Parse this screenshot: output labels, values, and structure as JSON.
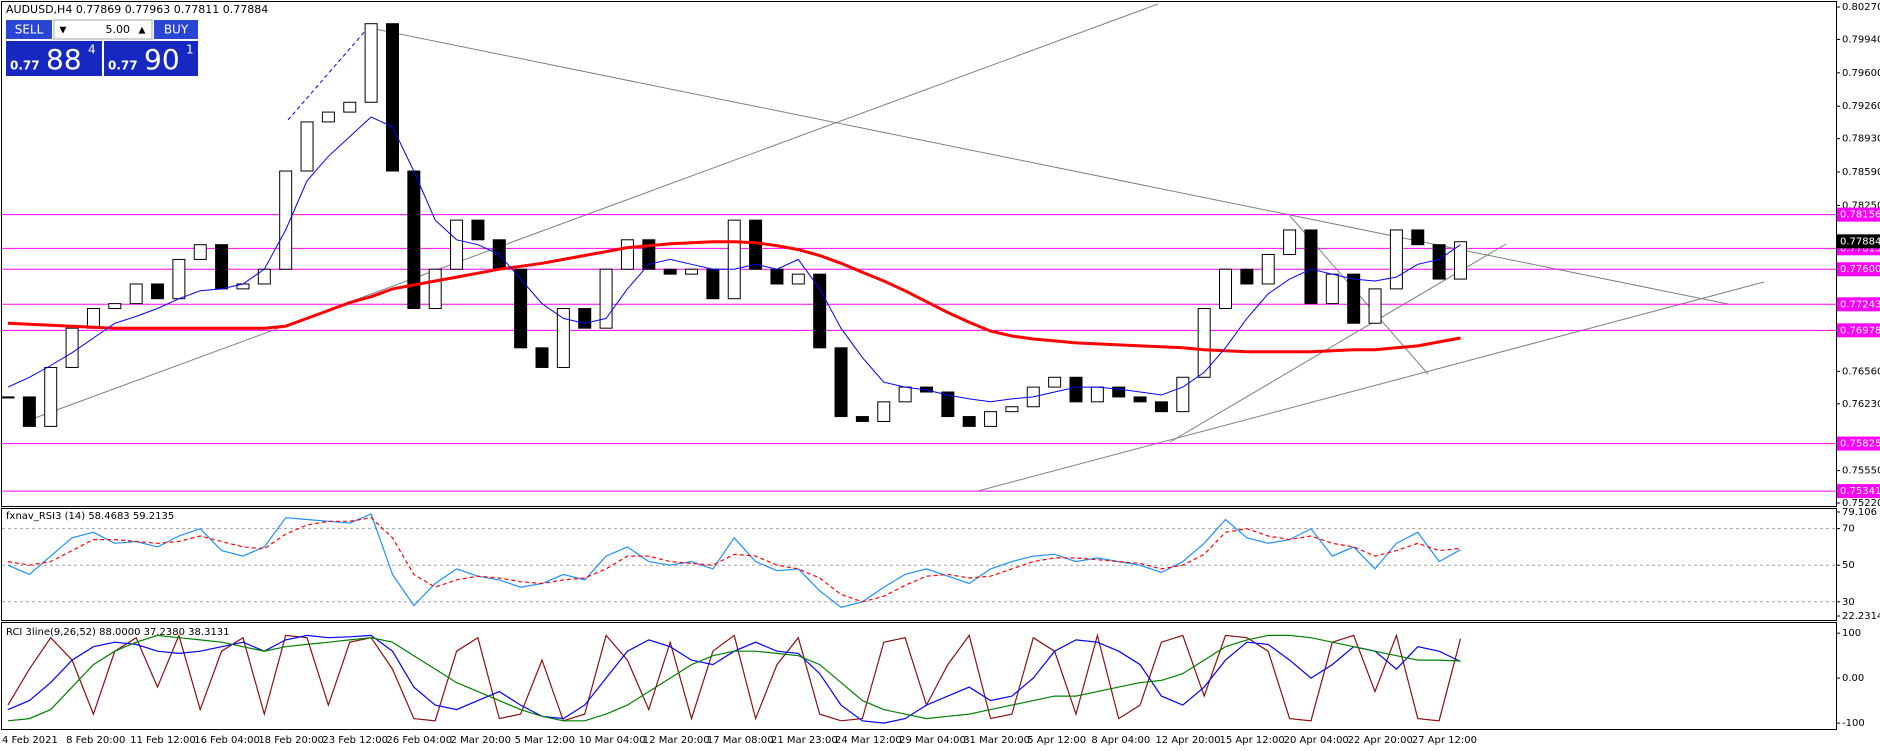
{
  "header": {
    "title": "AUDUSD,H4  0.77869 0.77963 0.77811 0.77884"
  },
  "trade_panel": {
    "sell": "SELL",
    "lots": "5.00",
    "buy": "BUY",
    "sell_prefix": "0.77",
    "sell_big": "88",
    "sell_sup": "4",
    "buy_prefix": "0.77",
    "buy_big": "90",
    "buy_sup": "1"
  },
  "chart_data": [
    {
      "type": "candlestick",
      "categories": [
        "4 Feb 2021",
        null,
        null,
        "8 Feb 20:00",
        null,
        null,
        "11 Feb 12:00",
        null,
        null,
        "16 Feb 04:00",
        null,
        null,
        "18 Feb 20:00",
        null,
        null,
        "23 Feb 12:00",
        null,
        null,
        "26 Feb 04:00",
        null,
        null,
        "2 Mar 20:00",
        null,
        null,
        "5 Mar 12:00",
        null,
        null,
        "10 Mar 04:00",
        null,
        null,
        "12 Mar 20:00",
        null,
        null,
        "17 Mar 08:00",
        null,
        null,
        "21 Mar 23:00",
        null,
        null,
        "24 Mar 12:00",
        null,
        null,
        "29 Mar 04:00",
        null,
        null,
        "31 Mar 20:00",
        null,
        null,
        "5 Apr 12:00",
        null,
        null,
        "8 Apr 04:00",
        null,
        null,
        "12 Apr 20:00",
        null,
        null,
        "15 Apr 12:00",
        null,
        null,
        "20 Apr 04:00",
        null,
        null,
        "22 Apr 20:00",
        null,
        null,
        "27 Apr 12:00",
        null,
        null
      ],
      "values": [
        0.763,
        0.76,
        0.766,
        0.77,
        0.772,
        0.7725,
        0.7745,
        0.773,
        0.777,
        0.7785,
        0.774,
        0.7745,
        0.776,
        0.786,
        0.791,
        0.792,
        0.793,
        0.801,
        0.786,
        0.772,
        0.776,
        0.781,
        0.779,
        0.776,
        0.768,
        0.766,
        0.772,
        0.77,
        0.776,
        0.779,
        0.776,
        0.7755,
        0.776,
        0.773,
        0.781,
        0.776,
        0.7745,
        0.7755,
        0.768,
        0.761,
        0.7605,
        0.7625,
        0.764,
        0.7635,
        0.761,
        0.76,
        0.7615,
        0.762,
        0.764,
        0.765,
        0.7625,
        0.764,
        0.763,
        0.7625,
        0.7615,
        0.765,
        0.772,
        0.776,
        0.7745,
        0.7775,
        0.78,
        0.7725,
        0.7755,
        0.7705,
        0.774,
        0.78,
        0.7785,
        0.775,
        0.7788
      ],
      "series": [
        {
          "color": "#ff0000",
          "line_width": 3,
          "values": [
            0.7705,
            0.7704,
            0.7703,
            0.7702,
            0.7701,
            0.77,
            0.77,
            0.77,
            0.77,
            0.77,
            0.77,
            0.77,
            0.77,
            0.7702,
            0.771,
            0.7718,
            0.7726,
            0.7732,
            0.774,
            0.7744,
            0.7748,
            0.7752,
            0.7756,
            0.776,
            0.7763,
            0.7766,
            0.777,
            0.7774,
            0.7778,
            0.7782,
            0.7784,
            0.7786,
            0.7787,
            0.7788,
            0.7788,
            0.7787,
            0.7784,
            0.778,
            0.7774,
            0.7766,
            0.7757,
            0.7748,
            0.7738,
            0.7727,
            0.7716,
            0.7706,
            0.7697,
            0.7692,
            0.7689,
            0.7687,
            0.7685,
            0.7684,
            0.7683,
            0.7682,
            0.7681,
            0.768,
            0.7678,
            0.7677,
            0.7676,
            0.7676,
            0.7676,
            0.7676,
            0.7677,
            0.7678,
            0.7678,
            0.768,
            0.7682,
            0.7686,
            0.769
          ]
        },
        {
          "color": "#0000ff",
          "line_width": 1,
          "values": [
            0.764,
            0.765,
            0.7662,
            0.7675,
            0.769,
            0.7705,
            0.7712,
            0.772,
            0.773,
            0.7738,
            0.774,
            0.7745,
            0.776,
            0.78,
            0.785,
            0.7875,
            0.7895,
            0.7915,
            0.7905,
            0.786,
            0.781,
            0.779,
            0.7785,
            0.7775,
            0.775,
            0.7725,
            0.771,
            0.7705,
            0.771,
            0.774,
            0.7765,
            0.777,
            0.7765,
            0.776,
            0.776,
            0.7765,
            0.776,
            0.777,
            0.774,
            0.77,
            0.767,
            0.7645,
            0.764,
            0.7637,
            0.7632,
            0.7628,
            0.7625,
            0.7628,
            0.763,
            0.7635,
            0.764,
            0.764,
            0.7638,
            0.7635,
            0.7632,
            0.764,
            0.7655,
            0.768,
            0.771,
            0.7735,
            0.775,
            0.776,
            0.7755,
            0.775,
            0.7748,
            0.7752,
            0.7765,
            0.777,
            0.7785
          ]
        }
      ],
      "levels": {
        "color": "#ff00ff",
        "values": [
          0.78156,
          0.77813,
          {
            "value": 0.776,
            "label": "0.77600"
          },
          0.77243,
          0.76978,
          0.75825,
          0.75341
        ]
      },
      "last_price": 0.77884,
      "ylim": [
        0.7522,
        0.8027
      ],
      "yticks": [
        {
          "value": 0.8027,
          "label": "0.80270"
        },
        {
          "value": 0.7994,
          "label": "0.79940"
        },
        {
          "value": 0.796,
          "label": "0.79600"
        },
        {
          "value": 0.7926,
          "label": "0.79260"
        },
        {
          "value": 0.7893,
          "label": "0.78930"
        },
        {
          "value": 0.7859,
          "label": "0.78590"
        },
        {
          "value": 0.7825,
          "label": "0.78250"
        },
        {
          "value": 0.7656,
          "label": "0.76560"
        },
        {
          "value": 0.7623,
          "label": "0.76230"
        },
        {
          "value": 0.7555,
          "label": "0.75550"
        },
        {
          "value": 0.7522,
          "label": "0.75220"
        }
      ],
      "grid": false
    },
    {
      "type": "line",
      "title": "fxnav_RSI3 (14) 58.4683 59.2135",
      "series": [
        {
          "color": "#1e90ff",
          "dash": false,
          "values": [
            50,
            45,
            55,
            65,
            68,
            62,
            63,
            60,
            66,
            70,
            58,
            55,
            60,
            76,
            75,
            74,
            73,
            78,
            45,
            28,
            40,
            48,
            44,
            42,
            38,
            40,
            45,
            42,
            55,
            60,
            52,
            50,
            52,
            48,
            65,
            52,
            47,
            48,
            36,
            27,
            30,
            38,
            45,
            48,
            44,
            40,
            48,
            52,
            55,
            56,
            52,
            54,
            52,
            50,
            46,
            52,
            62,
            75,
            65,
            62,
            64,
            70,
            55,
            60,
            48,
            62,
            68,
            52,
            58.5
          ]
        },
        {
          "color": "#ff0000",
          "dash": true,
          "values": [
            52,
            50,
            52,
            58,
            64,
            64,
            63,
            62,
            63,
            66,
            63,
            60,
            59,
            67,
            72,
            74,
            74,
            76,
            65,
            45,
            38,
            42,
            44,
            43,
            41,
            40,
            42,
            43,
            48,
            55,
            55,
            52,
            51,
            50,
            56,
            55,
            50,
            48,
            43,
            34,
            30,
            33,
            39,
            44,
            45,
            43,
            44,
            48,
            52,
            54,
            54,
            53,
            52,
            51,
            48,
            50,
            56,
            68,
            70,
            66,
            64,
            66,
            62,
            60,
            55,
            58,
            62,
            58,
            59.2
          ]
        }
      ],
      "ylim": [
        22.2314,
        79.106
      ],
      "yticks": [
        79.106,
        70,
        50,
        30,
        22.2314
      ],
      "grid": true
    },
    {
      "type": "line",
      "title": "RCI 3line(9,26,52) 88.0000 37.2380 38.3131",
      "series": [
        {
          "color": "#8b1010",
          "dash": false,
          "values": [
            -60,
            20,
            90,
            40,
            -80,
            60,
            90,
            -20,
            95,
            -70,
            60,
            90,
            -80,
            95,
            90,
            -60,
            80,
            90,
            20,
            -90,
            -95,
            60,
            90,
            -90,
            -80,
            40,
            -95,
            -80,
            95,
            40,
            -70,
            80,
            -90,
            60,
            95,
            -90,
            30,
            90,
            -80,
            -95,
            -90,
            80,
            90,
            -60,
            30,
            95,
            -90,
            -80,
            90,
            60,
            -80,
            95,
            -90,
            -60,
            80,
            95,
            -40,
            95,
            90,
            60,
            -90,
            -95,
            80,
            95,
            -30,
            95,
            -90,
            -95,
            88
          ]
        },
        {
          "color": "#0000ff",
          "dash": false,
          "values": [
            -70,
            -50,
            -10,
            40,
            70,
            80,
            75,
            60,
            55,
            60,
            70,
            80,
            60,
            85,
            95,
            90,
            92,
            95,
            60,
            -20,
            -60,
            -70,
            -50,
            -30,
            -60,
            -85,
            -90,
            -60,
            0,
            60,
            85,
            70,
            40,
            30,
            60,
            80,
            60,
            55,
            10,
            -60,
            -95,
            -100,
            -90,
            -60,
            -40,
            -20,
            -50,
            -40,
            0,
            60,
            85,
            80,
            60,
            30,
            -40,
            -60,
            -20,
            40,
            80,
            75,
            40,
            0,
            30,
            70,
            60,
            20,
            70,
            60,
            37
          ]
        },
        {
          "color": "#008000",
          "dash": false,
          "values": [
            -95,
            -90,
            -70,
            -20,
            30,
            60,
            80,
            95,
            90,
            85,
            80,
            70,
            60,
            70,
            75,
            80,
            85,
            90,
            80,
            50,
            20,
            -10,
            -30,
            -50,
            -70,
            -85,
            -95,
            -95,
            -80,
            -60,
            -30,
            0,
            30,
            50,
            60,
            60,
            55,
            50,
            30,
            -10,
            -50,
            -70,
            -80,
            -90,
            -85,
            -80,
            -70,
            -60,
            -50,
            -40,
            -40,
            -30,
            -20,
            -10,
            -5,
            10,
            40,
            70,
            85,
            95,
            95,
            90,
            80,
            70,
            60,
            50,
            40,
            40,
            38
          ]
        }
      ],
      "ylim": [
        -111,
        116
      ],
      "yticks": [
        100,
        {
          "value": 0,
          "label": "0.00"
        },
        -100
      ],
      "grid": false
    }
  ]
}
